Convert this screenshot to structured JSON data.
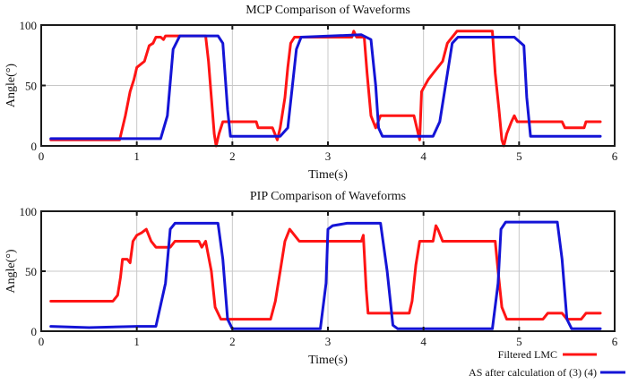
{
  "colors": {
    "filtered": "#ff1414",
    "as": "#1414d6",
    "grid": "#c8c8c8",
    "frame": "#1a1a1a"
  },
  "legend": {
    "filtered_label": "Filtered LMC",
    "as_label": "AS after calculation of (3) (4)",
    "position": "bottom-right"
  },
  "chart_data": [
    {
      "type": "line",
      "title": "MCP Comparison of Waveforms",
      "xlabel": "Time(s)",
      "ylabel": "Angle(°)",
      "xlim": [
        0,
        6
      ],
      "ylim": [
        0,
        100
      ],
      "xticks": [
        0,
        1,
        2,
        3,
        4,
        5,
        6
      ],
      "yticks": [
        0,
        50,
        100
      ],
      "grid": true,
      "series": [
        {
          "name": "Filtered LMC",
          "color_key": "filtered",
          "points": [
            [
              0.1,
              5
            ],
            [
              0.82,
              5
            ],
            [
              0.88,
              25
            ],
            [
              0.93,
              45
            ],
            [
              0.97,
              55
            ],
            [
              1.0,
              65
            ],
            [
              1.08,
              70
            ],
            [
              1.13,
              83
            ],
            [
              1.17,
              85
            ],
            [
              1.2,
              90
            ],
            [
              1.25,
              90
            ],
            [
              1.28,
              88
            ],
            [
              1.3,
              91
            ],
            [
              1.72,
              91
            ],
            [
              1.75,
              70
            ],
            [
              1.78,
              40
            ],
            [
              1.81,
              10
            ],
            [
              1.83,
              0
            ],
            [
              1.86,
              10
            ],
            [
              1.9,
              20
            ],
            [
              2.25,
              20
            ],
            [
              2.27,
              15
            ],
            [
              2.42,
              15
            ],
            [
              2.47,
              5
            ],
            [
              2.5,
              15
            ],
            [
              2.55,
              40
            ],
            [
              2.58,
              65
            ],
            [
              2.61,
              85
            ],
            [
              2.65,
              90
            ],
            [
              3.25,
              90
            ],
            [
              3.27,
              95
            ],
            [
              3.3,
              90
            ],
            [
              3.38,
              90
            ],
            [
              3.41,
              60
            ],
            [
              3.45,
              25
            ],
            [
              3.5,
              15
            ],
            [
              3.55,
              25
            ],
            [
              3.9,
              25
            ],
            [
              3.93,
              15
            ],
            [
              3.96,
              5
            ],
            [
              3.98,
              45
            ],
            [
              4.05,
              55
            ],
            [
              4.1,
              60
            ],
            [
              4.2,
              70
            ],
            [
              4.25,
              85
            ],
            [
              4.28,
              88
            ],
            [
              4.3,
              90
            ],
            [
              4.35,
              95
            ],
            [
              4.72,
              95
            ],
            [
              4.75,
              60
            ],
            [
              4.79,
              30
            ],
            [
              4.82,
              5
            ],
            [
              4.84,
              0
            ],
            [
              4.87,
              10
            ],
            [
              4.92,
              20
            ],
            [
              4.95,
              25
            ],
            [
              4.98,
              20
            ],
            [
              5.45,
              20
            ],
            [
              5.48,
              15
            ],
            [
              5.68,
              15
            ],
            [
              5.7,
              20
            ],
            [
              5.85,
              20
            ]
          ]
        },
        {
          "name": "AS after calculation of (3) (4)",
          "color_key": "as",
          "points": [
            [
              0.1,
              6
            ],
            [
              1.25,
              6
            ],
            [
              1.32,
              25
            ],
            [
              1.38,
              80
            ],
            [
              1.45,
              91
            ],
            [
              1.85,
              91
            ],
            [
              1.9,
              85
            ],
            [
              1.95,
              30
            ],
            [
              1.98,
              8
            ],
            [
              2.5,
              8
            ],
            [
              2.58,
              15
            ],
            [
              2.67,
              80
            ],
            [
              2.72,
              90
            ],
            [
              3.35,
              92
            ],
            [
              3.45,
              88
            ],
            [
              3.5,
              50
            ],
            [
              3.53,
              15
            ],
            [
              3.57,
              8
            ],
            [
              4.1,
              8
            ],
            [
              4.17,
              20
            ],
            [
              4.3,
              85
            ],
            [
              4.36,
              90
            ],
            [
              4.95,
              90
            ],
            [
              5.05,
              83
            ],
            [
              5.08,
              40
            ],
            [
              5.12,
              8
            ],
            [
              5.85,
              8
            ]
          ]
        }
      ]
    },
    {
      "type": "line",
      "title": "PIP Comparison of Waveforms",
      "xlabel": "Time(s)",
      "ylabel": "Angle(°)",
      "xlim": [
        0,
        6
      ],
      "ylim": [
        0,
        100
      ],
      "xticks": [
        0,
        1,
        2,
        3,
        4,
        5,
        6
      ],
      "yticks": [
        0,
        50,
        100
      ],
      "grid": true,
      "series": [
        {
          "name": "Filtered LMC",
          "color_key": "filtered",
          "points": [
            [
              0.1,
              25
            ],
            [
              0.75,
              25
            ],
            [
              0.8,
              30
            ],
            [
              0.83,
              45
            ],
            [
              0.85,
              60
            ],
            [
              0.9,
              60
            ],
            [
              0.93,
              57
            ],
            [
              0.96,
              75
            ],
            [
              1.0,
              80
            ],
            [
              1.05,
              82
            ],
            [
              1.1,
              85
            ],
            [
              1.15,
              75
            ],
            [
              1.2,
              70
            ],
            [
              1.35,
              70
            ],
            [
              1.4,
              75
            ],
            [
              1.65,
              75
            ],
            [
              1.68,
              70
            ],
            [
              1.72,
              75
            ],
            [
              1.78,
              50
            ],
            [
              1.82,
              20
            ],
            [
              1.88,
              10
            ],
            [
              2.4,
              10
            ],
            [
              2.45,
              25
            ],
            [
              2.5,
              50
            ],
            [
              2.55,
              75
            ],
            [
              2.6,
              85
            ],
            [
              2.65,
              80
            ],
            [
              2.7,
              75
            ],
            [
              3.35,
              75
            ],
            [
              3.37,
              80
            ],
            [
              3.4,
              35
            ],
            [
              3.42,
              15
            ],
            [
              3.85,
              15
            ],
            [
              3.88,
              25
            ],
            [
              3.92,
              55
            ],
            [
              3.96,
              75
            ],
            [
              4.1,
              75
            ],
            [
              4.13,
              88
            ],
            [
              4.15,
              85
            ],
            [
              4.2,
              75
            ],
            [
              4.75,
              75
            ],
            [
              4.78,
              50
            ],
            [
              4.82,
              20
            ],
            [
              4.87,
              10
            ],
            [
              5.25,
              10
            ],
            [
              5.3,
              15
            ],
            [
              5.45,
              15
            ],
            [
              5.5,
              10
            ],
            [
              5.65,
              10
            ],
            [
              5.7,
              15
            ],
            [
              5.85,
              15
            ]
          ]
        },
        {
          "name": "AS after calculation of (3) (4)",
          "color_key": "as",
          "points": [
            [
              0.1,
              4
            ],
            [
              0.5,
              3
            ],
            [
              1.0,
              4
            ],
            [
              1.2,
              4
            ],
            [
              1.3,
              40
            ],
            [
              1.35,
              85
            ],
            [
              1.4,
              90
            ],
            [
              1.85,
              90
            ],
            [
              1.9,
              60
            ],
            [
              1.95,
              10
            ],
            [
              2.0,
              2
            ],
            [
              2.92,
              2
            ],
            [
              2.98,
              40
            ],
            [
              3.0,
              85
            ],
            [
              3.05,
              88
            ],
            [
              3.2,
              90
            ],
            [
              3.55,
              90
            ],
            [
              3.62,
              50
            ],
            [
              3.68,
              5
            ],
            [
              3.73,
              2
            ],
            [
              4.72,
              2
            ],
            [
              4.78,
              40
            ],
            [
              4.81,
              85
            ],
            [
              4.86,
              91
            ],
            [
              5.4,
              91
            ],
            [
              5.45,
              60
            ],
            [
              5.5,
              10
            ],
            [
              5.55,
              2
            ],
            [
              5.85,
              2
            ]
          ]
        }
      ]
    }
  ]
}
